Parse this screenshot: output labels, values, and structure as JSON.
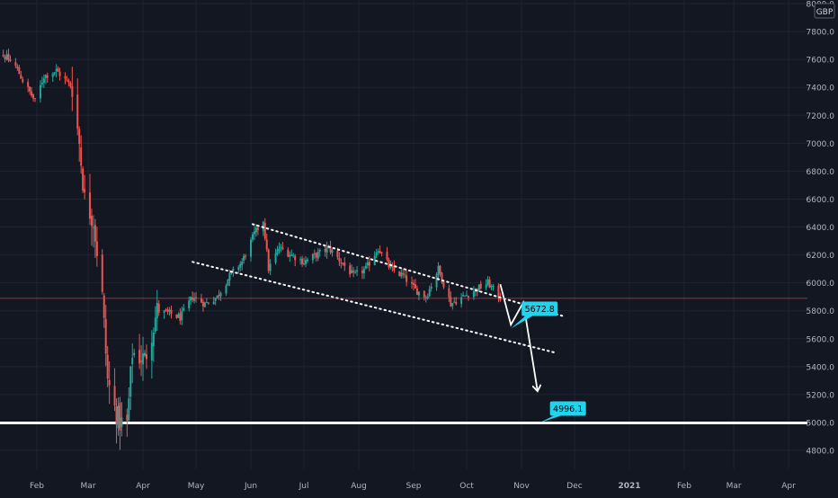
{
  "currency_badge": "GBP",
  "colors": {
    "background": "#131722",
    "grid": "#1f2330",
    "axis_text": "#b2b5be",
    "up": "#26a69a",
    "down": "#ef5350",
    "price_line": "#ef5350",
    "annotation": "#22d3ee",
    "support": "#ffffff",
    "channel": "#ffffff"
  },
  "chart_data": {
    "type": "candlestick",
    "title": "",
    "xlabel": "",
    "ylabel": "",
    "ylim": [
      4600,
      8000
    ],
    "grid": true,
    "y_ticks": [
      "4800.0",
      "5000.0",
      "5200.0",
      "5400.0",
      "5600.0",
      "5800.0",
      "6000.0",
      "6200.0",
      "6400.0",
      "6600.0",
      "6800.0",
      "7000.0",
      "7200.0",
      "7400.0",
      "7600.0",
      "7800.0",
      "8000.0"
    ],
    "x_ticks": [
      "Feb",
      "Mar",
      "Apr",
      "May",
      "Jun",
      "Jul",
      "Aug",
      "Sep",
      "Oct",
      "Nov",
      "Dec",
      "2021",
      "Feb",
      "Mar",
      "Apr"
    ],
    "price_labels": [
      {
        "text": "5889.2",
        "value": 5889.2
      },
      {
        "text": "5887.8",
        "value": 5887.8
      }
    ],
    "support_level": 4996.1,
    "annotations": [
      {
        "text": "5672.8",
        "value": 5672.8,
        "date": "2020-10-26"
      },
      {
        "text": "4996.1",
        "value": 4996.1,
        "date": "2020-11-11"
      }
    ],
    "channel": {
      "upper": [
        {
          "date": "2020-06-02",
          "value": 6420
        },
        {
          "date": "2020-11-25",
          "value": 5760
        }
      ],
      "lower": [
        {
          "date": "2020-04-29",
          "value": 6150
        },
        {
          "date": "2020-11-20",
          "value": 5500
        }
      ]
    },
    "projection": [
      {
        "date": "2020-10-20",
        "value": 5990
      },
      {
        "date": "2020-10-26",
        "value": 5700
      },
      {
        "date": "2020-11-02",
        "value": 5860
      },
      {
        "date": "2020-11-10",
        "value": 5230
      }
    ],
    "closes": [
      {
        "date": "2020-01-02",
        "value": 7600
      },
      {
        "date": "2020-01-08",
        "value": 7660
      },
      {
        "date": "2020-01-14",
        "value": 7620
      },
      {
        "date": "2020-01-20",
        "value": 7550
      },
      {
        "date": "2020-01-24",
        "value": 7450
      },
      {
        "date": "2020-01-31",
        "value": 7300
      },
      {
        "date": "2020-02-05",
        "value": 7480
      },
      {
        "date": "2020-02-12",
        "value": 7520
      },
      {
        "date": "2020-02-18",
        "value": 7440
      },
      {
        "date": "2020-02-21",
        "value": 7400
      },
      {
        "date": "2020-02-25",
        "value": 7000
      },
      {
        "date": "2020-02-28",
        "value": 6600
      },
      {
        "date": "2020-03-04",
        "value": 6450
      },
      {
        "date": "2020-03-09",
        "value": 5900
      },
      {
        "date": "2020-03-12",
        "value": 5300
      },
      {
        "date": "2020-03-16",
        "value": 5100
      },
      {
        "date": "2020-03-19",
        "value": 5000
      },
      {
        "date": "2020-03-23",
        "value": 4980
      },
      {
        "date": "2020-03-26",
        "value": 5500
      },
      {
        "date": "2020-04-02",
        "value": 5450
      },
      {
        "date": "2020-04-09",
        "value": 5800
      },
      {
        "date": "2020-04-16",
        "value": 5780
      },
      {
        "date": "2020-04-22",
        "value": 5750
      },
      {
        "date": "2020-04-29",
        "value": 5900
      },
      {
        "date": "2020-05-06",
        "value": 5850
      },
      {
        "date": "2020-05-13",
        "value": 5900
      },
      {
        "date": "2020-05-20",
        "value": 6050
      },
      {
        "date": "2020-05-27",
        "value": 6150
      },
      {
        "date": "2020-06-03",
        "value": 6350
      },
      {
        "date": "2020-06-08",
        "value": 6450
      },
      {
        "date": "2020-06-11",
        "value": 6100
      },
      {
        "date": "2020-06-17",
        "value": 6250
      },
      {
        "date": "2020-06-24",
        "value": 6200
      },
      {
        "date": "2020-07-01",
        "value": 6150
      },
      {
        "date": "2020-07-08",
        "value": 6200
      },
      {
        "date": "2020-07-15",
        "value": 6250
      },
      {
        "date": "2020-07-22",
        "value": 6150
      },
      {
        "date": "2020-07-29",
        "value": 6050
      },
      {
        "date": "2020-08-05",
        "value": 6100
      },
      {
        "date": "2020-08-12",
        "value": 6250
      },
      {
        "date": "2020-08-19",
        "value": 6100
      },
      {
        "date": "2020-08-26",
        "value": 6050
      },
      {
        "date": "2020-09-02",
        "value": 5950
      },
      {
        "date": "2020-09-08",
        "value": 5900
      },
      {
        "date": "2020-09-15",
        "value": 6100
      },
      {
        "date": "2020-09-22",
        "value": 5850
      },
      {
        "date": "2020-09-29",
        "value": 5900
      },
      {
        "date": "2020-10-06",
        "value": 5950
      },
      {
        "date": "2020-10-13",
        "value": 6000
      },
      {
        "date": "2020-10-20",
        "value": 5890
      }
    ]
  }
}
